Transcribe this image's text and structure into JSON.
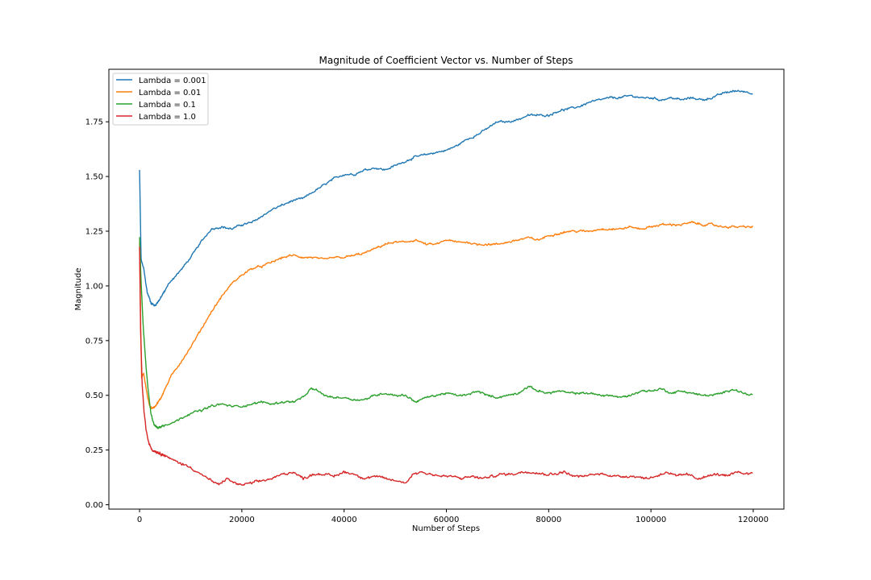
{
  "chart_data": {
    "type": "line",
    "title": "Magnitude of Coefficient Vector vs. Number of Steps",
    "xlabel": "Number of Steps",
    "ylabel": "Magnitude",
    "xlim": [
      -6000,
      126000
    ],
    "ylim": [
      -0.02,
      1.99
    ],
    "xticks": [
      0,
      20000,
      40000,
      60000,
      80000,
      100000,
      120000
    ],
    "xtick_labels": [
      "0",
      "20000",
      "40000",
      "60000",
      "80000",
      "100000",
      "120000"
    ],
    "yticks": [
      0.0,
      0.25,
      0.5,
      0.75,
      1.0,
      1.25,
      1.5,
      1.75
    ],
    "ytick_labels": [
      "0.00",
      "0.25",
      "0.50",
      "0.75",
      "1.00",
      "1.25",
      "1.50",
      "1.75"
    ],
    "grid": false,
    "legend": "top-left",
    "series": [
      {
        "name": "Lambda = 0.001",
        "color": "#1f77b4",
        "noise": 0.006,
        "points": [
          [
            0,
            1.53
          ],
          [
            300,
            1.12
          ],
          [
            800,
            1.08
          ],
          [
            1500,
            0.97
          ],
          [
            2300,
            0.92
          ],
          [
            3000,
            0.91
          ],
          [
            4000,
            0.94
          ],
          [
            5000,
            0.98
          ],
          [
            6000,
            1.02
          ],
          [
            8000,
            1.07
          ],
          [
            10000,
            1.13
          ],
          [
            12000,
            1.2
          ],
          [
            14000,
            1.26
          ],
          [
            16000,
            1.27
          ],
          [
            18000,
            1.26
          ],
          [
            20000,
            1.28
          ],
          [
            22000,
            1.29
          ],
          [
            24000,
            1.32
          ],
          [
            26000,
            1.35
          ],
          [
            28000,
            1.37
          ],
          [
            30000,
            1.39
          ],
          [
            32000,
            1.4
          ],
          [
            34000,
            1.43
          ],
          [
            36000,
            1.46
          ],
          [
            38000,
            1.49
          ],
          [
            40000,
            1.51
          ],
          [
            42000,
            1.51
          ],
          [
            44000,
            1.53
          ],
          [
            46000,
            1.54
          ],
          [
            48000,
            1.53
          ],
          [
            50000,
            1.55
          ],
          [
            52000,
            1.57
          ],
          [
            54000,
            1.59
          ],
          [
            56000,
            1.6
          ],
          [
            58000,
            1.61
          ],
          [
            60000,
            1.62
          ],
          [
            62000,
            1.64
          ],
          [
            64000,
            1.67
          ],
          [
            66000,
            1.69
          ],
          [
            68000,
            1.72
          ],
          [
            70000,
            1.75
          ],
          [
            72000,
            1.75
          ],
          [
            74000,
            1.76
          ],
          [
            76000,
            1.78
          ],
          [
            78000,
            1.78
          ],
          [
            80000,
            1.78
          ],
          [
            82000,
            1.8
          ],
          [
            84000,
            1.81
          ],
          [
            86000,
            1.82
          ],
          [
            88000,
            1.84
          ],
          [
            90000,
            1.85
          ],
          [
            92000,
            1.86
          ],
          [
            94000,
            1.86
          ],
          [
            96000,
            1.87
          ],
          [
            98000,
            1.86
          ],
          [
            100000,
            1.86
          ],
          [
            102000,
            1.85
          ],
          [
            104000,
            1.86
          ],
          [
            106000,
            1.85
          ],
          [
            108000,
            1.86
          ],
          [
            110000,
            1.85
          ],
          [
            112000,
            1.86
          ],
          [
            114000,
            1.88
          ],
          [
            116000,
            1.89
          ],
          [
            118000,
            1.89
          ],
          [
            120000,
            1.88
          ]
        ]
      },
      {
        "name": "Lambda = 0.01",
        "color": "#ff7f0e",
        "noise": 0.006,
        "points": [
          [
            0,
            1.2
          ],
          [
            200,
            0.85
          ],
          [
            400,
            0.58
          ],
          [
            800,
            0.6
          ],
          [
            1500,
            0.5
          ],
          [
            2000,
            0.45
          ],
          [
            2500,
            0.44
          ],
          [
            3000,
            0.45
          ],
          [
            4000,
            0.48
          ],
          [
            5000,
            0.53
          ],
          [
            6000,
            0.58
          ],
          [
            8000,
            0.65
          ],
          [
            10000,
            0.72
          ],
          [
            12000,
            0.8
          ],
          [
            14000,
            0.88
          ],
          [
            16000,
            0.95
          ],
          [
            18000,
            1.01
          ],
          [
            20000,
            1.05
          ],
          [
            22000,
            1.08
          ],
          [
            24000,
            1.09
          ],
          [
            26000,
            1.11
          ],
          [
            28000,
            1.13
          ],
          [
            30000,
            1.14
          ],
          [
            32000,
            1.13
          ],
          [
            34000,
            1.13
          ],
          [
            36000,
            1.12
          ],
          [
            38000,
            1.13
          ],
          [
            40000,
            1.13
          ],
          [
            42000,
            1.14
          ],
          [
            44000,
            1.15
          ],
          [
            46000,
            1.17
          ],
          [
            48000,
            1.19
          ],
          [
            50000,
            1.2
          ],
          [
            52000,
            1.2
          ],
          [
            54000,
            1.21
          ],
          [
            56000,
            1.19
          ],
          [
            58000,
            1.19
          ],
          [
            60000,
            1.21
          ],
          [
            62000,
            1.2
          ],
          [
            64000,
            1.2
          ],
          [
            66000,
            1.19
          ],
          [
            68000,
            1.19
          ],
          [
            70000,
            1.19
          ],
          [
            72000,
            1.2
          ],
          [
            74000,
            1.21
          ],
          [
            76000,
            1.22
          ],
          [
            78000,
            1.21
          ],
          [
            80000,
            1.23
          ],
          [
            82000,
            1.24
          ],
          [
            84000,
            1.25
          ],
          [
            86000,
            1.25
          ],
          [
            88000,
            1.25
          ],
          [
            90000,
            1.26
          ],
          [
            92000,
            1.26
          ],
          [
            94000,
            1.26
          ],
          [
            96000,
            1.27
          ],
          [
            98000,
            1.26
          ],
          [
            100000,
            1.27
          ],
          [
            102000,
            1.28
          ],
          [
            104000,
            1.28
          ],
          [
            106000,
            1.28
          ],
          [
            108000,
            1.29
          ],
          [
            110000,
            1.28
          ],
          [
            112000,
            1.28
          ],
          [
            114000,
            1.27
          ],
          [
            116000,
            1.27
          ],
          [
            118000,
            1.27
          ],
          [
            120000,
            1.27
          ]
        ]
      },
      {
        "name": "Lambda = 0.1",
        "color": "#2ca02c",
        "noise": 0.006,
        "points": [
          [
            0,
            1.22
          ],
          [
            300,
            1.02
          ],
          [
            700,
            0.82
          ],
          [
            1200,
            0.65
          ],
          [
            1700,
            0.52
          ],
          [
            2200,
            0.42
          ],
          [
            2800,
            0.37
          ],
          [
            3500,
            0.35
          ],
          [
            4500,
            0.36
          ],
          [
            5500,
            0.37
          ],
          [
            7000,
            0.38
          ],
          [
            8500,
            0.4
          ],
          [
            10000,
            0.42
          ],
          [
            12000,
            0.43
          ],
          [
            14000,
            0.45
          ],
          [
            16000,
            0.46
          ],
          [
            18000,
            0.45
          ],
          [
            20000,
            0.45
          ],
          [
            22000,
            0.46
          ],
          [
            24000,
            0.47
          ],
          [
            26000,
            0.46
          ],
          [
            28000,
            0.47
          ],
          [
            30000,
            0.47
          ],
          [
            32000,
            0.49
          ],
          [
            33500,
            0.53
          ],
          [
            35000,
            0.52
          ],
          [
            36000,
            0.5
          ],
          [
            38000,
            0.49
          ],
          [
            40000,
            0.49
          ],
          [
            42000,
            0.48
          ],
          [
            44000,
            0.48
          ],
          [
            46000,
            0.5
          ],
          [
            48000,
            0.51
          ],
          [
            50000,
            0.5
          ],
          [
            52000,
            0.5
          ],
          [
            54000,
            0.47
          ],
          [
            56000,
            0.49
          ],
          [
            58000,
            0.5
          ],
          [
            60000,
            0.51
          ],
          [
            62000,
            0.5
          ],
          [
            64000,
            0.5
          ],
          [
            66000,
            0.52
          ],
          [
            68000,
            0.5
          ],
          [
            70000,
            0.49
          ],
          [
            72000,
            0.5
          ],
          [
            74000,
            0.51
          ],
          [
            76000,
            0.54
          ],
          [
            78000,
            0.52
          ],
          [
            80000,
            0.51
          ],
          [
            82000,
            0.52
          ],
          [
            84000,
            0.51
          ],
          [
            86000,
            0.51
          ],
          [
            88000,
            0.51
          ],
          [
            90000,
            0.5
          ],
          [
            92000,
            0.5
          ],
          [
            94000,
            0.49
          ],
          [
            96000,
            0.5
          ],
          [
            98000,
            0.52
          ],
          [
            100000,
            0.52
          ],
          [
            102000,
            0.53
          ],
          [
            104000,
            0.51
          ],
          [
            106000,
            0.52
          ],
          [
            108000,
            0.51
          ],
          [
            110000,
            0.5
          ],
          [
            112000,
            0.5
          ],
          [
            114000,
            0.51
          ],
          [
            116000,
            0.53
          ],
          [
            118000,
            0.51
          ],
          [
            120000,
            0.5
          ]
        ]
      },
      {
        "name": "Lambda = 1.0",
        "color": "#d62728",
        "noise": 0.007,
        "points": [
          [
            0,
            1.18
          ],
          [
            200,
            0.8
          ],
          [
            500,
            0.55
          ],
          [
            900,
            0.42
          ],
          [
            1300,
            0.34
          ],
          [
            1800,
            0.28
          ],
          [
            2500,
            0.25
          ],
          [
            3500,
            0.24
          ],
          [
            4500,
            0.23
          ],
          [
            6000,
            0.21
          ],
          [
            8000,
            0.19
          ],
          [
            10000,
            0.17
          ],
          [
            12000,
            0.14
          ],
          [
            14000,
            0.11
          ],
          [
            15500,
            0.09
          ],
          [
            17000,
            0.12
          ],
          [
            18500,
            0.1
          ],
          [
            20000,
            0.09
          ],
          [
            22000,
            0.1
          ],
          [
            24000,
            0.11
          ],
          [
            26000,
            0.12
          ],
          [
            28000,
            0.14
          ],
          [
            30000,
            0.15
          ],
          [
            32000,
            0.12
          ],
          [
            34000,
            0.14
          ],
          [
            36000,
            0.14
          ],
          [
            38000,
            0.13
          ],
          [
            40000,
            0.15
          ],
          [
            42000,
            0.14
          ],
          [
            44000,
            0.12
          ],
          [
            46000,
            0.13
          ],
          [
            48000,
            0.12
          ],
          [
            50000,
            0.11
          ],
          [
            52000,
            0.1
          ],
          [
            53500,
            0.14
          ],
          [
            55000,
            0.15
          ],
          [
            57000,
            0.14
          ],
          [
            59000,
            0.13
          ],
          [
            61000,
            0.13
          ],
          [
            63000,
            0.12
          ],
          [
            65000,
            0.13
          ],
          [
            67000,
            0.12
          ],
          [
            69000,
            0.13
          ],
          [
            71000,
            0.14
          ],
          [
            73000,
            0.14
          ],
          [
            75000,
            0.15
          ],
          [
            77000,
            0.15
          ],
          [
            79000,
            0.14
          ],
          [
            81000,
            0.14
          ],
          [
            83000,
            0.15
          ],
          [
            85000,
            0.13
          ],
          [
            87000,
            0.13
          ],
          [
            89000,
            0.14
          ],
          [
            91000,
            0.14
          ],
          [
            93000,
            0.13
          ],
          [
            95000,
            0.13
          ],
          [
            97000,
            0.13
          ],
          [
            99000,
            0.12
          ],
          [
            101000,
            0.13
          ],
          [
            103000,
            0.15
          ],
          [
            105000,
            0.13
          ],
          [
            107000,
            0.14
          ],
          [
            109000,
            0.12
          ],
          [
            111000,
            0.13
          ],
          [
            113000,
            0.14
          ],
          [
            115000,
            0.13
          ],
          [
            117000,
            0.15
          ],
          [
            119000,
            0.14
          ],
          [
            120000,
            0.15
          ]
        ]
      }
    ]
  }
}
